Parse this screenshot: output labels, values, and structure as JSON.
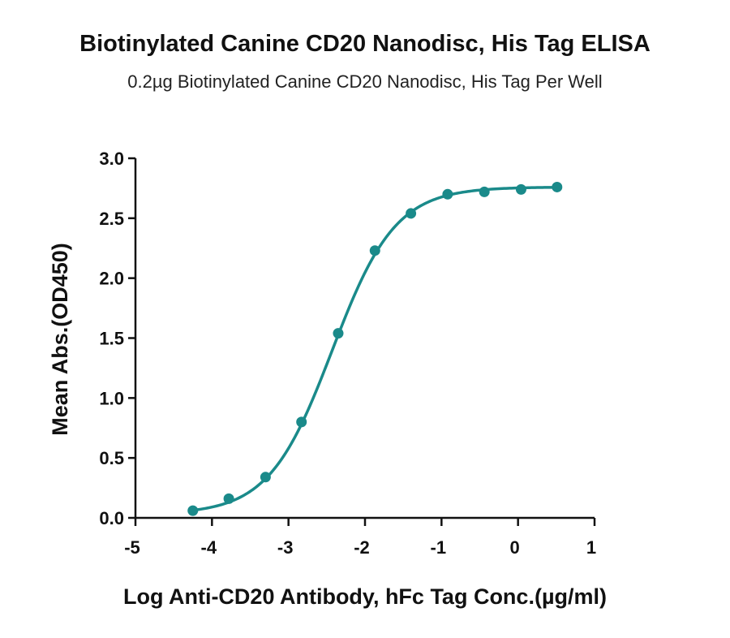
{
  "chart_data": {
    "type": "scatter",
    "title": "Biotinylated Canine CD20 Nanodisc, His Tag ELISA",
    "subtitle": "0.2µg Biotinylated Canine CD20 Nanodisc, His Tag Per Well",
    "xlabel": "Log Anti-CD20 Antibody, hFc Tag Conc.(µg/ml)",
    "ylabel": "Mean Abs.(OD450)",
    "xlim": [
      -5,
      1
    ],
    "ylim": [
      0,
      3.0
    ],
    "x_ticks": [
      "-5",
      "-4",
      "-3",
      "-2",
      "-1",
      "0",
      "1"
    ],
    "y_ticks": [
      "0.0",
      "0.5",
      "1.0",
      "1.5",
      "2.0",
      "2.5",
      "3.0"
    ],
    "grid": false,
    "series": [
      {
        "color": "#1a8a8a",
        "x": [
          -4.25,
          -3.78,
          -3.3,
          -2.83,
          -2.35,
          -1.87,
          -1.4,
          -0.92,
          -0.44,
          0.04,
          0.51
        ],
        "y": [
          0.06,
          0.16,
          0.34,
          0.8,
          1.54,
          2.23,
          2.54,
          2.7,
          2.72,
          2.74,
          2.76
        ],
        "fit": {
          "model": "4PL",
          "bottom": 0.03,
          "top": 2.76,
          "logEC50": -2.43,
          "hill": 1.05
        }
      }
    ]
  }
}
